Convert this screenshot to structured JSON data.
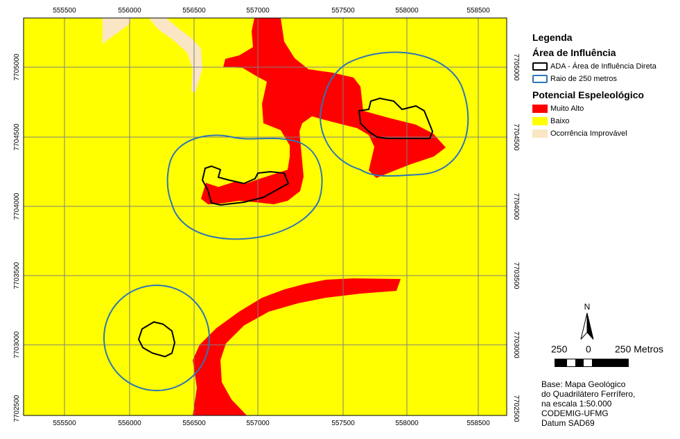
{
  "map": {
    "x_ticks": [
      "555500",
      "556000",
      "556500",
      "557000",
      "557500",
      "558000",
      "558500"
    ],
    "y_ticks": [
      "7705000",
      "7704500",
      "7704000",
      "7703500",
      "7703000",
      "7702500"
    ],
    "colors": {
      "muito_alto": "#ff0000",
      "baixo": "#ffff00",
      "improvavel": "#fae6c4",
      "ada_line": "#000000",
      "raio_line": "#2e75b6",
      "grid": "#7f7f7f"
    }
  },
  "legend": {
    "title": "Legenda",
    "area_title": "Área de Influência",
    "ada_label": "ADA - Área de Influência Direta",
    "raio_label": "Raio de 250 metros",
    "potencial_title": "Potencial Espeleológico",
    "muito_alto_label": "Muito Alto",
    "baixo_label": "Baixo",
    "improvavel_label": "Ocorrência Improvável"
  },
  "north_arrow": {
    "label": "N"
  },
  "scale_bar": {
    "left_label": "250",
    "center_label": "0",
    "right_label": "250 Metros"
  },
  "base_info": {
    "line1": "Base: Mapa Geológico",
    "line2": "do Quadrilátero Ferrífero,",
    "line3": "na escala 1:50.000",
    "line4": "CODEMIG-UFMG",
    "line5": "Datum SAD69"
  }
}
